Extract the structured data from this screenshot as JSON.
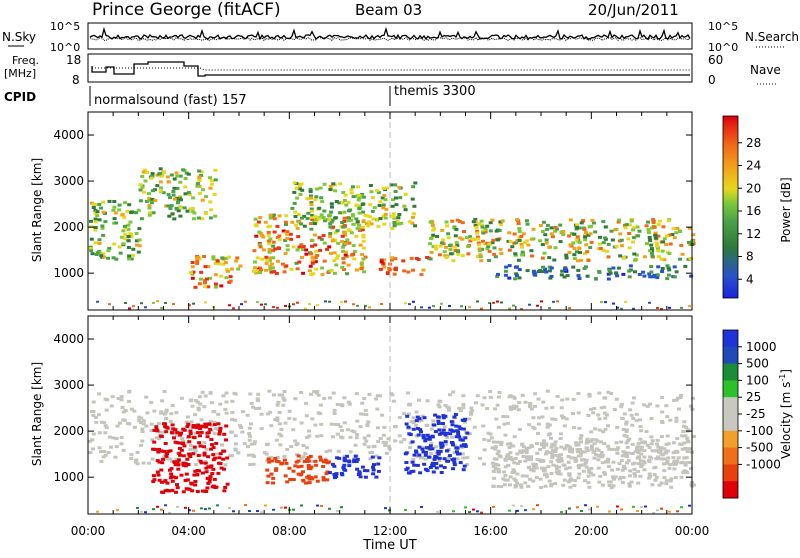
{
  "header": {
    "station": "Prince George (fitACF)",
    "beam": "Beam 03",
    "date": "20/Jun/2011"
  },
  "colors": {
    "power_scale": [
      "#1a22e0",
      "#2a52c8",
      "#2f7a3c",
      "#4aa04a",
      "#7cc83a",
      "#e6d81c",
      "#f2a11a",
      "#ef6a18",
      "#e83214",
      "#d8000a"
    ],
    "velocity_scale": [
      "#2033d8",
      "#1f4ab8",
      "#1c8c38",
      "#2cc02a",
      "#c8c8c0",
      "#c8c8c0",
      "#f2a02a",
      "#ef7018",
      "#e8400e",
      "#e00008"
    ],
    "data_gray": "#c4c4bc",
    "fill_grey": "#d4d4cc"
  },
  "strips": {
    "top": {
      "left_label": "N.Sky",
      "left_ticks": [
        "10^5",
        "10^0"
      ],
      "right_label": "N.Search",
      "right_ticks": [
        "10^5",
        "10^0"
      ]
    },
    "freq": {
      "left_label_1": "Freq.",
      "left_label_2": "[MHz]",
      "left_ticks": [
        "18",
        "8"
      ],
      "right_label": "Nave",
      "right_ticks": [
        "60",
        "0"
      ]
    },
    "cpid": {
      "label": "CPID",
      "mode_1": "normalsound (fast) 157",
      "mode_2": "themis 3300"
    }
  },
  "panels": {
    "power": {
      "ylabel": "Slant Range [km]",
      "yticks": [
        "4000",
        "3000",
        "2000",
        "1000"
      ],
      "colorbar_label": "Power [dB]",
      "colorbar_ticks": [
        "28",
        "24",
        "20",
        "16",
        "12",
        "8",
        "4"
      ]
    },
    "velocity": {
      "ylabel": "Slant Range [km]",
      "yticks": [
        "4000",
        "3000",
        "2000",
        "1000"
      ],
      "colorbar_label": "Velocity [m s",
      "colorbar_label_sup": "-1",
      "colorbar_label_end": "]",
      "colorbar_ticks": [
        "1000",
        "500",
        "100",
        "25",
        "-25",
        "-100",
        "-500",
        "-1000"
      ]
    }
  },
  "xaxis": {
    "label": "Time UT",
    "ticks": [
      "00:00",
      "04:00",
      "08:00",
      "12:00",
      "16:00",
      "20:00",
      "00:00"
    ]
  },
  "chart_data": [
    {
      "type": "heatmap",
      "title": "Power",
      "xlabel": "Time UT",
      "ylabel": "Slant Range [km]",
      "x_range_hours": [
        0,
        24
      ],
      "y_range_km": [
        200,
        4500
      ],
      "color_scale_label": "Power [dB]",
      "color_ticks": [
        28,
        24,
        20,
        16,
        12,
        8,
        4
      ],
      "features": [
        {
          "t_start": 0.0,
          "t_end": 2.0,
          "range_km": [
            1300,
            2600
          ],
          "power_db": [
            8,
            20
          ]
        },
        {
          "t_start": 2.0,
          "t_end": 5.0,
          "range_km": [
            2200,
            3300
          ],
          "power_db": [
            8,
            20
          ]
        },
        {
          "t_start": 4.0,
          "t_end": 6.0,
          "range_km": [
            700,
            1400
          ],
          "power_db": [
            12,
            28
          ]
        },
        {
          "t_start": 6.5,
          "t_end": 11.0,
          "range_km": [
            1000,
            2300
          ],
          "power_db": [
            12,
            28
          ]
        },
        {
          "t_start": 8.0,
          "t_end": 13.0,
          "range_km": [
            2000,
            3000
          ],
          "power_db": [
            8,
            20
          ]
        },
        {
          "t_start": 11.5,
          "t_end": 13.5,
          "range_km": [
            1000,
            1400
          ],
          "power_db": [
            20,
            28
          ]
        },
        {
          "t_start": 13.5,
          "t_end": 24.0,
          "range_km": [
            1300,
            2200
          ],
          "power_db": [
            8,
            24
          ]
        },
        {
          "t_start": 16.0,
          "t_end": 24.0,
          "range_km": [
            900,
            1200
          ],
          "power_db": [
            4,
            12
          ]
        }
      ]
    },
    {
      "type": "heatmap",
      "title": "Velocity",
      "xlabel": "Time UT",
      "ylabel": "Slant Range [km]",
      "x_range_hours": [
        0,
        24
      ],
      "y_range_km": [
        200,
        4500
      ],
      "color_scale_label": "Velocity [m s-1]",
      "color_ticks": [
        1000,
        500,
        100,
        25,
        -25,
        -100,
        -500,
        -1000
      ],
      "features": [
        {
          "t_start": 0.0,
          "t_end": 24.0,
          "range_km": [
            1300,
            2900
          ],
          "velocity_ms": [
            -25,
            25
          ]
        },
        {
          "t_start": 2.5,
          "t_end": 5.5,
          "range_km": [
            700,
            2200
          ],
          "velocity_ms": [
            -1000,
            -500
          ]
        },
        {
          "t_start": 7.0,
          "t_end": 9.5,
          "range_km": [
            900,
            1500
          ],
          "velocity_ms": [
            -500,
            -100
          ]
        },
        {
          "t_start": 9.5,
          "t_end": 11.5,
          "range_km": [
            1000,
            1500
          ],
          "velocity_ms": [
            500,
            1000
          ]
        },
        {
          "t_start": 12.5,
          "t_end": 15.0,
          "range_km": [
            1100,
            2400
          ],
          "velocity_ms": [
            500,
            1000
          ]
        },
        {
          "t_start": 16.0,
          "t_end": 24.0,
          "range_km": [
            800,
            1800
          ],
          "velocity_ms": [
            -25,
            25
          ]
        }
      ]
    }
  ]
}
